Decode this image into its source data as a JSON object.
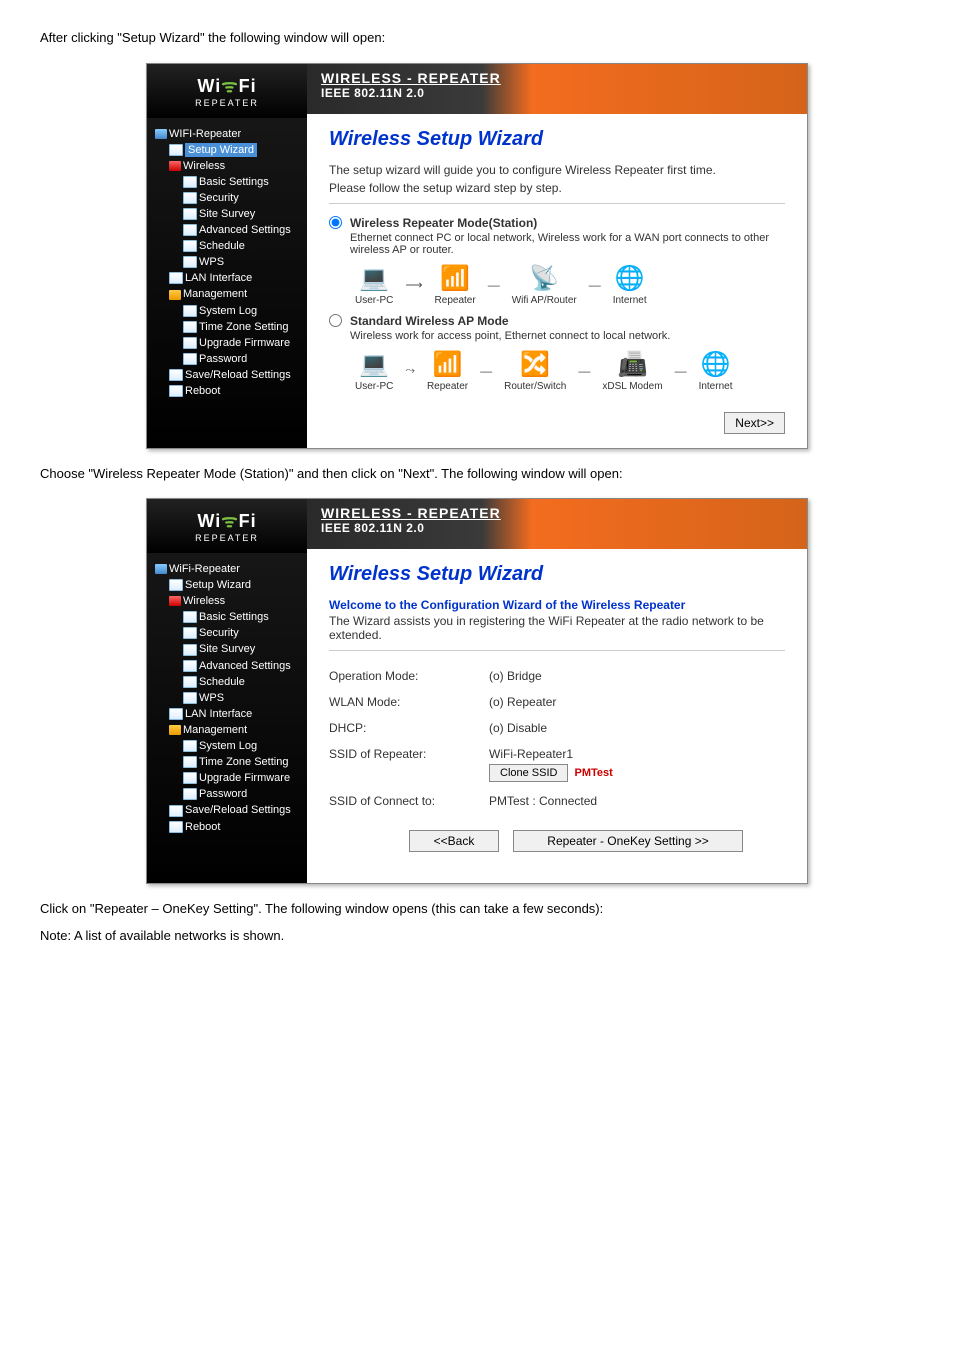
{
  "page_text": {
    "t1": "After clicking \"Setup Wizard\" the following window will open:",
    "t2": "Choose \"Wireless Repeater Mode (Station)\" and then click on \"Next\". The following window will open:",
    "t3": "Click on \"Repeater – OneKey Setting\". The following window opens (this can take a few seconds):",
    "t4": "Note: A list of available networks is shown."
  },
  "logo": {
    "brand": "Wi Fi",
    "sub": "REPEATER"
  },
  "header": {
    "title": "WIRELESS - REPEATER",
    "sub": "IEEE 802.11N 2.0"
  },
  "sidebar": {
    "root": "WIFI-Repeater",
    "root2": "WiFi-Repeater",
    "setup": "Setup Wizard",
    "wireless": "Wireless",
    "basic": "Basic Settings",
    "security": "Security",
    "survey": "Site Survey",
    "advanced": "Advanced Settings",
    "schedule": "Schedule",
    "wps": "WPS",
    "lan": "LAN Interface",
    "mgmt": "Management",
    "syslog": "System Log",
    "tz": "Time Zone Setting",
    "upgrade": "Upgrade Firmware",
    "password": "Password",
    "savereload": "Save/Reload Settings",
    "reboot": "Reboot"
  },
  "wiz1": {
    "title": "Wireless Setup Wizard",
    "desc1": "The setup wizard will guide you to configure Wireless Repeater first time.",
    "desc2": "Please follow the setup wizard step by step.",
    "mode1_title": "Wireless Repeater Mode(Station)",
    "mode1_sub": "Ethernet connect PC or local network, Wireless work for a WAN port connects to other wireless AP or router.",
    "mode2_title": "Standard Wireless AP Mode",
    "mode2_sub": "Wireless work for access point, Ethernet connect to local network.",
    "d1": {
      "n1": "User-PC",
      "n2": "Repeater",
      "n3": "Wifi AP/Router",
      "n4": "Internet"
    },
    "d2": {
      "n1": "User-PC",
      "n2": "Repeater",
      "n3": "Router/Switch",
      "n4": "xDSL Modem",
      "n5": "Internet"
    },
    "next": "Next>>"
  },
  "wiz2": {
    "title": "Wireless Setup Wizard",
    "welcome": "Welcome to the Configuration Wizard of the Wireless Repeater",
    "desc": "The Wizard assists you in registering the WiFi Repeater at the radio network to be extended.",
    "rows": {
      "op_l": "Operation Mode:",
      "op_v": "(o) Bridge",
      "wlan_l": "WLAN Mode:",
      "wlan_v": "(o) Repeater",
      "dhcp_l": "DHCP:",
      "dhcp_v": "(o) Disable",
      "ssid_l": "SSID of Repeater:",
      "ssid_v": "WiFi-Repeater1",
      "clone": "Clone SSID",
      "pmtest": "PMTest",
      "conn_l": "SSID of Connect to:",
      "conn_v": "PMTest : Connected"
    },
    "back": "<<Back",
    "onekey": "Repeater - OneKey Setting >>"
  }
}
